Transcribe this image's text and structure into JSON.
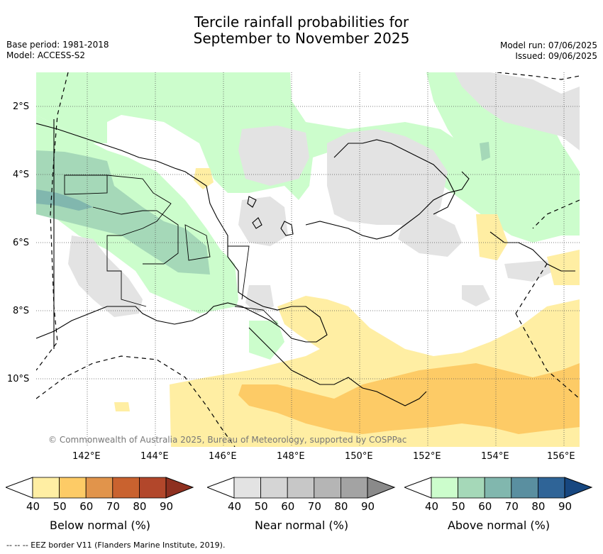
{
  "title_line1": "Tercile rainfall probabilities for",
  "title_line2": "September to November 2025",
  "base_period": "Base period: 1981-2018",
  "model": "Model: ACCESS-S2",
  "model_run": "Model run: 07/06/2025",
  "issued": "Issued: 09/06/2025",
  "copyright": "© Commonwealth of Australia 2025, Bureau of Meteorology, supported by COSPPac",
  "lat_labels": [
    "2°S",
    "4°S",
    "6°S",
    "8°S",
    "10°S"
  ],
  "lon_labels": [
    "142°E",
    "144°E",
    "146°E",
    "148°E",
    "150°E",
    "152°E",
    "154°E",
    "156°E"
  ],
  "map_extent": {
    "lon": [
      140.5,
      156.5
    ],
    "lat": [
      -11.9,
      -1.0
    ]
  },
  "colorbars": [
    {
      "label": "Below normal (%)",
      "ticks": [
        "40",
        "50",
        "60",
        "70",
        "80",
        "90"
      ],
      "colors": [
        "#ffeea3",
        "#fdcb66",
        "#e1944b",
        "#c9622f",
        "#b2472b",
        "#8e3020"
      ]
    },
    {
      "label": "Near normal (%)",
      "ticks": [
        "40",
        "50",
        "60",
        "70",
        "80",
        "90"
      ],
      "colors": [
        "#e3e3e3",
        "#d5d5d5",
        "#c7c7c7",
        "#b5b5b5",
        "#a3a3a3",
        "#8a8a8a"
      ]
    },
    {
      "label": "Above normal (%)",
      "ticks": [
        "40",
        "50",
        "60",
        "70",
        "80",
        "90"
      ],
      "colors": [
        "#ccfdcc",
        "#a5d8b8",
        "#81b7ae",
        "#5a8fa0",
        "#2f6497",
        "#174780"
      ]
    }
  ],
  "footer": "--  --  -- EEZ border V11 (Flanders Marine Institute, 2019)."
}
